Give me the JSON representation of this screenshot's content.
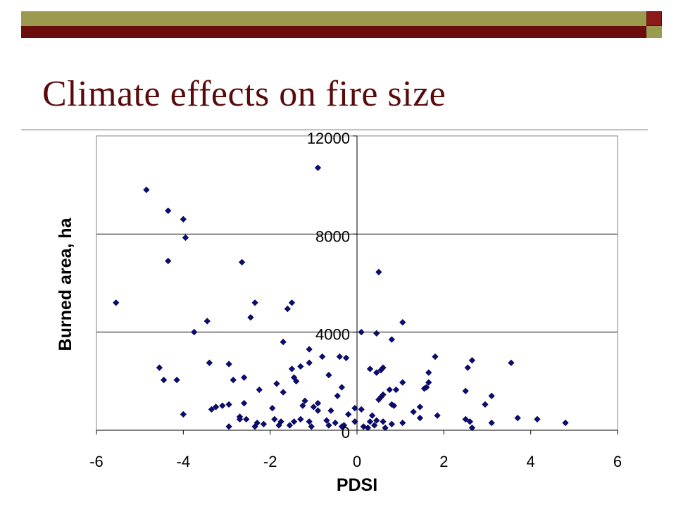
{
  "slide": {
    "title": "Climate effects on fire size"
  },
  "colors": {
    "bar_olive": "#9b9a4e",
    "bar_maroon": "#6b0d0d",
    "title": "#5a0a0a",
    "marker": "#0b0b7a"
  },
  "chart_data": {
    "type": "scatter",
    "xlabel": "PDSI",
    "ylabel": "Burned area, ha",
    "xlim": [
      -6,
      6
    ],
    "ylim": [
      0,
      12000
    ],
    "x_ticks": [
      -6,
      -4,
      -2,
      0,
      2,
      4,
      6
    ],
    "y_ticks": [
      0,
      4000,
      8000,
      12000
    ],
    "grid": "horizontal",
    "marker": "diamond",
    "series": [
      {
        "name": "",
        "points": [
          [
            -4.85,
            9800
          ],
          [
            -0.9,
            10700
          ],
          [
            -4.35,
            8950
          ],
          [
            -4.0,
            8600
          ],
          [
            -3.95,
            7850
          ],
          [
            -4.35,
            6900
          ],
          [
            -2.65,
            6850
          ],
          [
            0.5,
            6450
          ],
          [
            -5.55,
            5200
          ],
          [
            -2.35,
            5200
          ],
          [
            -1.5,
            5200
          ],
          [
            -1.6,
            4950
          ],
          [
            -2.45,
            4600
          ],
          [
            -3.45,
            4450
          ],
          [
            1.05,
            4400
          ],
          [
            -3.75,
            4000
          ],
          [
            0.1,
            4000
          ],
          [
            0.45,
            3950
          ],
          [
            0.8,
            3700
          ],
          [
            -1.7,
            3600
          ],
          [
            -1.1,
            3300
          ],
          [
            -0.8,
            3000
          ],
          [
            -0.4,
            3000
          ],
          [
            -0.25,
            2950
          ],
          [
            1.8,
            3000
          ],
          [
            -3.4,
            2750
          ],
          [
            -2.95,
            2700
          ],
          [
            -1.1,
            2750
          ],
          [
            -1.3,
            2600
          ],
          [
            2.65,
            2850
          ],
          [
            3.55,
            2750
          ],
          [
            -4.55,
            2550
          ],
          [
            -1.5,
            2500
          ],
          [
            0.3,
            2500
          ],
          [
            0.6,
            2550
          ],
          [
            2.55,
            2550
          ],
          [
            0.45,
            2350
          ],
          [
            1.65,
            2350
          ],
          [
            -1.45,
            2150
          ],
          [
            -1.4,
            2000
          ],
          [
            -0.65,
            2250
          ],
          [
            -4.45,
            2050
          ],
          [
            -4.15,
            2050
          ],
          [
            -2.85,
            2050
          ],
          [
            -2.6,
            2150
          ],
          [
            1.05,
            1950
          ],
          [
            1.65,
            1950
          ],
          [
            -0.35,
            1750
          ],
          [
            -2.25,
            1650
          ],
          [
            -1.7,
            1550
          ],
          [
            0.75,
            1650
          ],
          [
            0.9,
            1650
          ],
          [
            1.55,
            1700
          ],
          [
            1.6,
            1750
          ],
          [
            0.55,
            1350
          ],
          [
            0.5,
            1250
          ],
          [
            2.5,
            1600
          ],
          [
            3.1,
            1400
          ],
          [
            -1.85,
            1900
          ],
          [
            -2.6,
            1100
          ],
          [
            -3.1,
            1000
          ],
          [
            -3.25,
            950
          ],
          [
            -3.35,
            850
          ],
          [
            -2.95,
            1050
          ],
          [
            -1.95,
            900
          ],
          [
            -1.2,
            1200
          ],
          [
            -1.0,
            950
          ],
          [
            -0.9,
            800
          ],
          [
            -0.6,
            800
          ],
          [
            -0.2,
            650
          ],
          [
            0.1,
            850
          ],
          [
            0.8,
            1050
          ],
          [
            0.85,
            1000
          ],
          [
            1.3,
            750
          ],
          [
            1.45,
            950
          ],
          [
            2.95,
            1050
          ],
          [
            -4.0,
            650
          ],
          [
            -2.7,
            550
          ],
          [
            -2.7,
            450
          ],
          [
            -2.55,
            450
          ],
          [
            -1.9,
            450
          ],
          [
            -1.75,
            350
          ],
          [
            -1.45,
            350
          ],
          [
            -1.3,
            450
          ],
          [
            -1.1,
            350
          ],
          [
            -0.7,
            400
          ],
          [
            -0.5,
            300
          ],
          [
            -0.3,
            200
          ],
          [
            -0.05,
            350
          ],
          [
            0.3,
            350
          ],
          [
            0.45,
            400
          ],
          [
            0.6,
            350
          ],
          [
            0.8,
            250
          ],
          [
            1.05,
            300
          ],
          [
            1.45,
            500
          ],
          [
            1.85,
            600
          ],
          [
            2.5,
            450
          ],
          [
            2.6,
            350
          ],
          [
            3.1,
            300
          ],
          [
            3.7,
            500
          ],
          [
            4.15,
            450
          ],
          [
            4.8,
            300
          ],
          [
            -2.95,
            150
          ],
          [
            -2.35,
            150
          ],
          [
            -2.3,
            300
          ],
          [
            -2.15,
            250
          ],
          [
            -1.8,
            200
          ],
          [
            -1.55,
            200
          ],
          [
            -1.05,
            150
          ],
          [
            -0.65,
            200
          ],
          [
            -0.35,
            150
          ],
          [
            0.15,
            150
          ],
          [
            0.25,
            100
          ],
          [
            0.4,
            200
          ],
          [
            0.65,
            100
          ],
          [
            2.65,
            100
          ],
          [
            -0.9,
            1100
          ],
          [
            -1.25,
            1000
          ],
          [
            -0.45,
            1400
          ],
          [
            0.6,
            1450
          ],
          [
            -0.05,
            900
          ],
          [
            0.55,
            2450
          ],
          [
            0.35,
            600
          ]
        ]
      }
    ]
  }
}
